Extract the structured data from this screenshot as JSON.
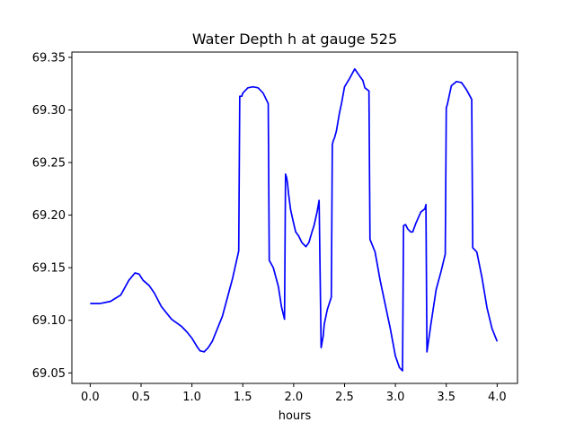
{
  "chart_data": {
    "type": "line",
    "title": "Water Depth h at gauge 525",
    "xlabel": "hours",
    "ylabel": "",
    "xlim": [
      -0.18,
      4.2
    ],
    "ylim": [
      69.04,
      69.355
    ],
    "xticks": [
      0.0,
      0.5,
      1.0,
      1.5,
      2.0,
      2.5,
      3.0,
      3.5,
      4.0
    ],
    "xtick_labels": [
      "0.0",
      "0.5",
      "1.0",
      "1.5",
      "2.0",
      "2.5",
      "3.0",
      "3.5",
      "4.0"
    ],
    "yticks": [
      69.05,
      69.1,
      69.15,
      69.2,
      69.25,
      69.3,
      69.35
    ],
    "ytick_labels": [
      "69.05",
      "69.10",
      "69.15",
      "69.20",
      "69.25",
      "69.30",
      "69.35"
    ],
    "grid": false,
    "series": [
      {
        "color": "#0000ff",
        "x": [
          0.0,
          0.1,
          0.2,
          0.3,
          0.38,
          0.44,
          0.48,
          0.52,
          0.58,
          0.63,
          0.7,
          0.8,
          0.9,
          0.95,
          1.0,
          1.05,
          1.08,
          1.12,
          1.16,
          1.2,
          1.3,
          1.4,
          1.46,
          1.47,
          1.475,
          1.49,
          1.5,
          1.55,
          1.6,
          1.65,
          1.7,
          1.75,
          1.76,
          1.8,
          1.85,
          1.88,
          1.91,
          1.92,
          1.93,
          1.94,
          1.95,
          1.97,
          2.0,
          2.02,
          2.05,
          2.08,
          2.1,
          2.12,
          2.15,
          2.18,
          2.2,
          2.23,
          2.25,
          2.27,
          2.29,
          2.3,
          2.33,
          2.37,
          2.38,
          2.39,
          2.4,
          2.42,
          2.45,
          2.47,
          2.5,
          2.55,
          2.6,
          2.65,
          2.68,
          2.7,
          2.74,
          2.75,
          2.8,
          2.85,
          2.9,
          2.95,
          3.0,
          3.04,
          3.07,
          3.08,
          3.1,
          3.12,
          3.15,
          3.17,
          3.2,
          3.25,
          3.29,
          3.3,
          3.31,
          3.35,
          3.4,
          3.45,
          3.49,
          3.5,
          3.51,
          3.55,
          3.6,
          3.65,
          3.7,
          3.75,
          3.76,
          3.8,
          3.85,
          3.9,
          3.95,
          4.0
        ],
        "y": [
          69.116,
          69.116,
          69.118,
          69.124,
          69.138,
          69.145,
          69.144,
          69.138,
          69.133,
          69.126,
          69.113,
          69.101,
          69.094,
          69.089,
          69.083,
          69.075,
          69.071,
          69.07,
          69.074,
          69.08,
          69.104,
          69.14,
          69.166,
          69.313,
          69.313,
          69.313,
          69.316,
          69.321,
          69.322,
          69.321,
          69.316,
          69.306,
          69.157,
          69.15,
          69.132,
          69.113,
          69.101,
          69.239,
          69.236,
          69.23,
          69.22,
          69.205,
          69.192,
          69.184,
          69.18,
          69.174,
          69.172,
          69.17,
          69.174,
          69.184,
          69.19,
          69.203,
          69.214,
          69.074,
          69.085,
          69.096,
          69.11,
          69.122,
          69.267,
          69.271,
          69.273,
          69.28,
          69.297,
          69.306,
          69.322,
          69.33,
          69.339,
          69.332,
          69.328,
          69.321,
          69.318,
          69.177,
          69.165,
          69.138,
          69.115,
          69.092,
          69.066,
          69.055,
          69.052,
          69.19,
          69.191,
          69.187,
          69.184,
          69.184,
          69.192,
          69.203,
          69.206,
          69.21,
          69.07,
          69.097,
          69.129,
          69.147,
          69.163,
          69.302,
          69.305,
          69.323,
          69.327,
          69.326,
          69.319,
          69.31,
          69.169,
          69.165,
          69.141,
          69.112,
          69.092,
          69.08
        ]
      }
    ]
  }
}
